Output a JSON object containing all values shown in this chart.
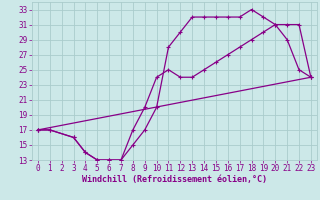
{
  "xlabel": "Windchill (Refroidissement éolien,°C)",
  "background_color": "#cce8e8",
  "grid_color": "#aacccc",
  "line_color": "#880088",
  "xlim": [
    -0.5,
    23.5
  ],
  "ylim": [
    13,
    34
  ],
  "xticks": [
    0,
    1,
    2,
    3,
    4,
    5,
    6,
    7,
    8,
    9,
    10,
    11,
    12,
    13,
    14,
    15,
    16,
    17,
    18,
    19,
    20,
    21,
    22,
    23
  ],
  "yticks": [
    13,
    15,
    17,
    19,
    21,
    23,
    25,
    27,
    29,
    31,
    33
  ],
  "curve1_x": [
    0,
    1,
    3,
    4,
    5,
    6,
    7,
    8,
    9,
    10,
    11,
    12,
    13,
    14,
    15,
    16,
    17,
    18,
    19,
    20,
    21,
    22,
    23
  ],
  "curve1_y": [
    17,
    17,
    16,
    14,
    13,
    13,
    13,
    15,
    17,
    20,
    28,
    30,
    32,
    32,
    32,
    32,
    32,
    33,
    32,
    31,
    29,
    25,
    24
  ],
  "curve2_x": [
    0,
    1,
    3,
    4,
    5,
    6,
    7,
    8,
    9,
    10,
    11,
    12,
    13,
    14,
    15,
    16,
    17,
    18,
    19,
    20,
    21,
    22,
    23
  ],
  "curve2_y": [
    17,
    17,
    16,
    14,
    13,
    13,
    13,
    17,
    20,
    24,
    25,
    24,
    24,
    25,
    26,
    27,
    28,
    29,
    30,
    31,
    31,
    31,
    24
  ],
  "curve3_x": [
    0,
    23
  ],
  "curve3_y": [
    17,
    24
  ],
  "marker_size": 3,
  "line_width": 0.9,
  "tick_fontsize": 5.5,
  "xlabel_fontsize": 6.0
}
